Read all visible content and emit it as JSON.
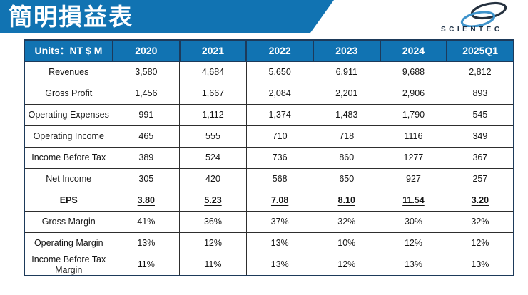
{
  "title": "簡明損益表",
  "logo": {
    "brand": "SCIENTEC"
  },
  "colors": {
    "banner_blue": "#1173b2",
    "header_blue": "#1173b2",
    "table_border_navy": "#1d3a5a",
    "grid_line": "#2e2e2e",
    "logo_dark": "#25313f",
    "logo_light": "#3e93cb"
  },
  "table": {
    "header": [
      "Units：NT $ M",
      "2020",
      "2021",
      "2022",
      "2023",
      "2024",
      "2025Q1"
    ],
    "rows": [
      {
        "label": "Revenues",
        "style": "normal",
        "values": [
          "3,580",
          "4,684",
          "5,650",
          "6,911",
          "9,688",
          "2,812"
        ]
      },
      {
        "label": "Gross Profit",
        "style": "normal",
        "values": [
          "1,456",
          "1,667",
          "2,084",
          "2,201",
          "2,906",
          "893"
        ]
      },
      {
        "label": "Operating Expenses",
        "style": "normal",
        "values": [
          "991",
          "1,112",
          "1,374",
          "1,483",
          "1,790",
          "545"
        ]
      },
      {
        "label": "Operating Income",
        "style": "normal",
        "values": [
          "465",
          "555",
          "710",
          "718",
          "1116",
          "349"
        ]
      },
      {
        "label": "Income Before Tax",
        "style": "normal",
        "values": [
          "389",
          "524",
          "736",
          "860",
          "1277",
          "367"
        ]
      },
      {
        "label": "Net Income",
        "style": "normal",
        "values": [
          "305",
          "420",
          "568",
          "650",
          "927",
          "257"
        ]
      },
      {
        "label": "EPS",
        "style": "eps",
        "values": [
          "3.80",
          "5.23",
          "7.08",
          "8.10",
          "11.54",
          "3.20"
        ]
      },
      {
        "label": "Gross Margin",
        "style": "normal",
        "values": [
          "41%",
          "36%",
          "37%",
          "32%",
          "30%",
          "32%"
        ]
      },
      {
        "label": "Operating Margin",
        "style": "normal",
        "values": [
          "13%",
          "12%",
          "13%",
          "10%",
          "12%",
          "12%"
        ]
      },
      {
        "label": "Income Before Tax Margin",
        "style": "normal",
        "values": [
          "11%",
          "11%",
          "13%",
          "12%",
          "13%",
          "13%"
        ]
      }
    ]
  }
}
